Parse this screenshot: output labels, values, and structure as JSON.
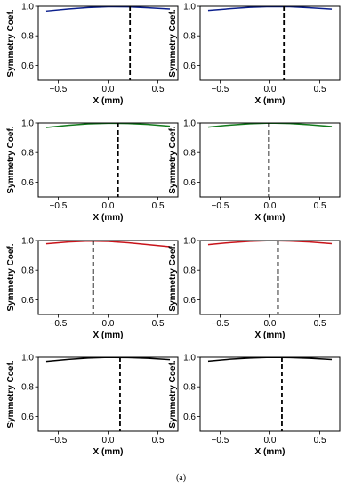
{
  "caption": "(a)",
  "chart_data": [
    {
      "type": "line",
      "xlabel": "X (mm)",
      "ylabel": "Symmetry Coef.",
      "xlim": [
        -0.7,
        0.7
      ],
      "ylim": [
        0.5,
        1.0
      ],
      "xticks": [
        -0.5,
        0.0,
        0.5
      ],
      "xtick_labels": [
        "−0.5",
        "0.0",
        "0.5"
      ],
      "yticks": [
        0.6,
        0.8,
        1.0
      ],
      "ytick_labels": [
        "0.6",
        "0.8",
        "1.0"
      ],
      "series": [
        {
          "color": "#0b1f8c",
          "x": [
            -0.62,
            -0.4,
            -0.2,
            0.0,
            0.2,
            0.4,
            0.62
          ],
          "y": [
            0.968,
            0.982,
            0.992,
            0.997,
            0.996,
            0.99,
            0.982
          ]
        }
      ],
      "vline": 0.22,
      "reference_line": 1.0
    },
    {
      "type": "line",
      "xlabel": "X (mm)",
      "ylabel": "Symmetry Coef.",
      "xlim": [
        -0.7,
        0.7
      ],
      "ylim": [
        0.5,
        1.0
      ],
      "xticks": [
        -0.5,
        0.0,
        0.5
      ],
      "xtick_labels": [
        "−0.5",
        "0.0",
        "0.5"
      ],
      "yticks": [
        0.6,
        0.8,
        1.0
      ],
      "ytick_labels": [
        "0.6",
        "0.8",
        "1.0"
      ],
      "series": [
        {
          "color": "#0b1f8c",
          "x": [
            -0.62,
            -0.4,
            -0.2,
            0.0,
            0.2,
            0.4,
            0.62
          ],
          "y": [
            0.972,
            0.984,
            0.993,
            0.998,
            0.997,
            0.99,
            0.981
          ]
        }
      ],
      "vline": 0.14,
      "reference_line": 1.0
    },
    {
      "type": "line",
      "xlabel": "X (mm)",
      "ylabel": "Symmetry Coef.",
      "xlim": [
        -0.7,
        0.7
      ],
      "ylim": [
        0.5,
        1.0
      ],
      "xticks": [
        -0.5,
        0.0,
        0.5
      ],
      "xtick_labels": [
        "−0.5",
        "0.0",
        "0.5"
      ],
      "yticks": [
        0.6,
        0.8,
        1.0
      ],
      "ytick_labels": [
        "0.6",
        "0.8",
        "1.0"
      ],
      "series": [
        {
          "color": "#117a1b",
          "x": [
            -0.62,
            -0.4,
            -0.2,
            0.0,
            0.2,
            0.4,
            0.62
          ],
          "y": [
            0.97,
            0.984,
            0.994,
            0.998,
            0.996,
            0.99,
            0.978
          ]
        }
      ],
      "vline": 0.1,
      "reference_line": 1.0
    },
    {
      "type": "line",
      "xlabel": "X (mm)",
      "ylabel": "Symmetry Coef.",
      "xlim": [
        -0.7,
        0.7
      ],
      "ylim": [
        0.5,
        1.0
      ],
      "xticks": [
        -0.5,
        0.0,
        0.5
      ],
      "xtick_labels": [
        "−0.5",
        "0.0",
        "0.5"
      ],
      "yticks": [
        0.6,
        0.8,
        1.0
      ],
      "ytick_labels": [
        "0.6",
        "0.8",
        "1.0"
      ],
      "series": [
        {
          "color": "#117a1b",
          "x": [
            -0.62,
            -0.4,
            -0.2,
            0.0,
            0.2,
            0.4,
            0.62
          ],
          "y": [
            0.972,
            0.986,
            0.995,
            0.999,
            0.996,
            0.988,
            0.976
          ]
        }
      ],
      "vline": -0.01,
      "reference_line": 1.0
    },
    {
      "type": "line",
      "xlabel": "X (mm)",
      "ylabel": "Symmetry Coef.",
      "xlim": [
        -0.7,
        0.7
      ],
      "ylim": [
        0.5,
        1.0
      ],
      "xticks": [
        -0.5,
        0.0,
        0.5
      ],
      "xtick_labels": [
        "−0.5",
        "0.0",
        "0.5"
      ],
      "yticks": [
        0.6,
        0.8,
        1.0
      ],
      "ytick_labels": [
        "0.6",
        "0.8",
        "1.0"
      ],
      "series": [
        {
          "color": "#c8141b",
          "x": [
            -0.62,
            -0.4,
            -0.2,
            0.0,
            0.2,
            0.4,
            0.62
          ],
          "y": [
            0.978,
            0.99,
            0.996,
            0.994,
            0.985,
            0.972,
            0.958
          ]
        }
      ],
      "vline": -0.15,
      "reference_line": 1.0
    },
    {
      "type": "line",
      "xlabel": "X (mm)",
      "ylabel": "Symmetry Coef.",
      "xlim": [
        -0.7,
        0.7
      ],
      "ylim": [
        0.5,
        1.0
      ],
      "xticks": [
        -0.5,
        0.0,
        0.5
      ],
      "xtick_labels": [
        "−0.5",
        "0.0",
        "0.5"
      ],
      "yticks": [
        0.6,
        0.8,
        1.0
      ],
      "ytick_labels": [
        "0.6",
        "0.8",
        "1.0"
      ],
      "series": [
        {
          "color": "#c8141b",
          "x": [
            -0.62,
            -0.4,
            -0.2,
            0.0,
            0.2,
            0.4,
            0.62
          ],
          "y": [
            0.972,
            0.986,
            0.995,
            0.999,
            0.996,
            0.99,
            0.979
          ]
        }
      ],
      "vline": 0.08,
      "reference_line": 1.0
    },
    {
      "type": "line",
      "xlabel": "X (mm)",
      "ylabel": "Symmetry Coef.",
      "xlim": [
        -0.7,
        0.7
      ],
      "ylim": [
        0.5,
        1.0
      ],
      "xticks": [
        -0.5,
        0.0,
        0.5
      ],
      "xtick_labels": [
        "−0.5",
        "0.0",
        "0.5"
      ],
      "yticks": [
        0.6,
        0.8,
        1.0
      ],
      "ytick_labels": [
        "0.6",
        "0.8",
        "1.0"
      ],
      "series": [
        {
          "color": "#000000",
          "x": [
            -0.62,
            -0.4,
            -0.2,
            0.0,
            0.2,
            0.4,
            0.62
          ],
          "y": [
            0.972,
            0.986,
            0.995,
            0.999,
            0.998,
            0.993,
            0.984
          ]
        }
      ],
      "vline": 0.12,
      "reference_line": 1.0
    },
    {
      "type": "line",
      "xlabel": "X (mm)",
      "ylabel": "Symmetry Coef.",
      "xlim": [
        -0.7,
        0.7
      ],
      "ylim": [
        0.5,
        1.0
      ],
      "xticks": [
        -0.5,
        0.0,
        0.5
      ],
      "xtick_labels": [
        "−0.5",
        "0.0",
        "0.5"
      ],
      "yticks": [
        0.6,
        0.8,
        1.0
      ],
      "ytick_labels": [
        "0.6",
        "0.8",
        "1.0"
      ],
      "series": [
        {
          "color": "#000000",
          "x": [
            -0.62,
            -0.4,
            -0.2,
            0.0,
            0.2,
            0.4,
            0.62
          ],
          "y": [
            0.974,
            0.987,
            0.995,
            0.999,
            0.998,
            0.993,
            0.985
          ]
        }
      ],
      "vline": 0.12,
      "reference_line": 1.0
    }
  ]
}
